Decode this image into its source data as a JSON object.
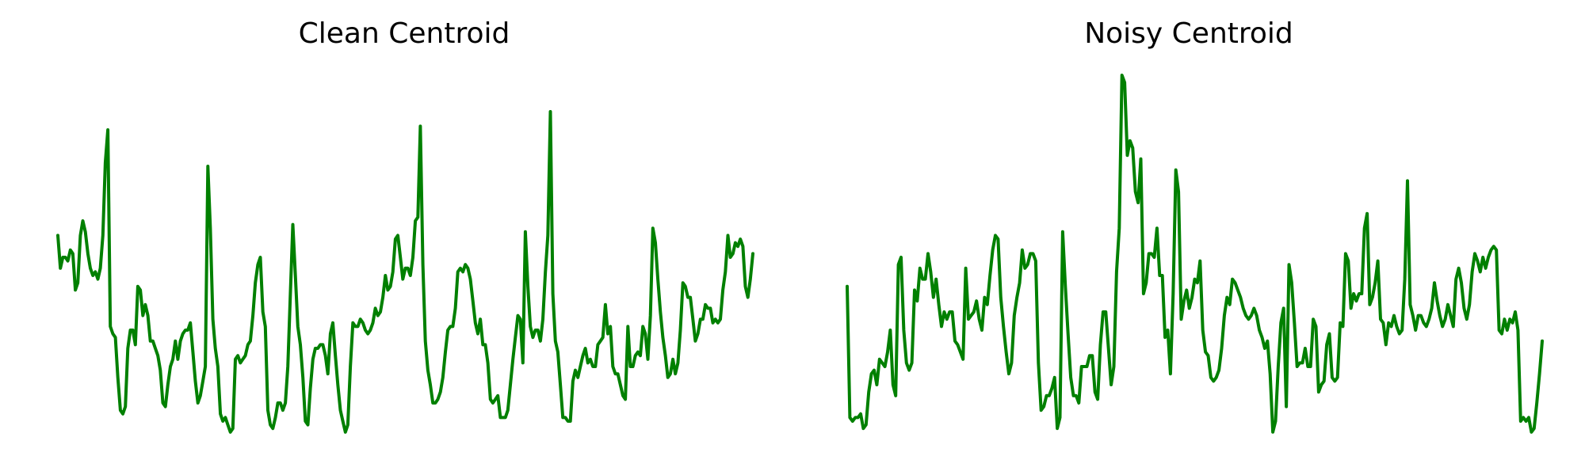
{
  "chart_data": [
    {
      "type": "line",
      "title": "Clean Centroid",
      "xlabel": "",
      "ylabel": "",
      "axes": "off",
      "grid": false,
      "color": "#008000",
      "series": [
        {
          "values": [
            0.56,
            0.47,
            0.5,
            0.5,
            0.49,
            0.52,
            0.51,
            0.41,
            0.43,
            0.56,
            0.6,
            0.57,
            0.51,
            0.47,
            0.45,
            0.46,
            0.44,
            0.47,
            0.56,
            0.76,
            0.85,
            0.31,
            0.29,
            0.28,
            0.17,
            0.08,
            0.07,
            0.09,
            0.25,
            0.3,
            0.3,
            0.26,
            0.42,
            0.41,
            0.34,
            0.37,
            0.34,
            0.27,
            0.27,
            0.25,
            0.23,
            0.19,
            0.1,
            0.09,
            0.15,
            0.2,
            0.22,
            0.27,
            0.22,
            0.27,
            0.29,
            0.3,
            0.3,
            0.32,
            0.24,
            0.16,
            0.1,
            0.12,
            0.16,
            0.2,
            0.75,
            0.58,
            0.33,
            0.25,
            0.2,
            0.07,
            0.05,
            0.06,
            0.04,
            0.02,
            0.03,
            0.22,
            0.23,
            0.21,
            0.22,
            0.23,
            0.26,
            0.27,
            0.34,
            0.43,
            0.48,
            0.5,
            0.35,
            0.31,
            0.08,
            0.04,
            0.03,
            0.06,
            0.1,
            0.1,
            0.08,
            0.1,
            0.2,
            0.4,
            0.59,
            0.45,
            0.31,
            0.26,
            0.17,
            0.05,
            0.04,
            0.14,
            0.22,
            0.25,
            0.25,
            0.26,
            0.26,
            0.23,
            0.18,
            0.29,
            0.32,
            0.23,
            0.15,
            0.08,
            0.05,
            0.02,
            0.04,
            0.2,
            0.32,
            0.31,
            0.31,
            0.33,
            0.32,
            0.3,
            0.29,
            0.3,
            0.32,
            0.36,
            0.34,
            0.35,
            0.39,
            0.45,
            0.41,
            0.42,
            0.46,
            0.55,
            0.56,
            0.5,
            0.44,
            0.47,
            0.47,
            0.45,
            0.5,
            0.6,
            0.61,
            0.86,
            0.48,
            0.27,
            0.19,
            0.15,
            0.1,
            0.1,
            0.11,
            0.13,
            0.17,
            0.24,
            0.3,
            0.31,
            0.31,
            0.36,
            0.46,
            0.47,
            0.46,
            0.48,
            0.47,
            0.44,
            0.38,
            0.32,
            0.29,
            0.33,
            0.26,
            0.26,
            0.21,
            0.11,
            0.1,
            0.11,
            0.12,
            0.06,
            0.06,
            0.06,
            0.08,
            0.15,
            0.22,
            0.28,
            0.34,
            0.33,
            0.21,
            0.57,
            0.42,
            0.31,
            0.28,
            0.3,
            0.3,
            0.27,
            0.33,
            0.46,
            0.56,
            0.9,
            0.4,
            0.27,
            0.24,
            0.15,
            0.06,
            0.06,
            0.05,
            0.05,
            0.16,
            0.19,
            0.17,
            0.2,
            0.23,
            0.25,
            0.21,
            0.22,
            0.2,
            0.2,
            0.26,
            0.27,
            0.28,
            0.37,
            0.29,
            0.31,
            0.2,
            0.18,
            0.18,
            0.15,
            0.12,
            0.11,
            0.31,
            0.2,
            0.2,
            0.23,
            0.24,
            0.23,
            0.31,
            0.29,
            0.22,
            0.34,
            0.58,
            0.54,
            0.44,
            0.35,
            0.28,
            0.23,
            0.17,
            0.18,
            0.22,
            0.18,
            0.21,
            0.3,
            0.43,
            0.42,
            0.39,
            0.39,
            0.33,
            0.27,
            0.29,
            0.33,
            0.33,
            0.37,
            0.36,
            0.36,
            0.32,
            0.33,
            0.32,
            0.33,
            0.41,
            0.46,
            0.56,
            0.5,
            0.51,
            0.54,
            0.53,
            0.55,
            0.53,
            0.42,
            0.39,
            0.44,
            0.51
          ]
        }
      ],
      "ylim": [
        0,
        1
      ]
    },
    {
      "type": "line",
      "title": "Noisy Centroid",
      "xlabel": "",
      "ylabel": "",
      "axes": "off",
      "grid": false,
      "color": "#008000",
      "series": [
        {
          "values": [
            0.42,
            0.06,
            0.05,
            0.06,
            0.06,
            0.07,
            0.03,
            0.04,
            0.13,
            0.18,
            0.19,
            0.15,
            0.22,
            0.21,
            0.2,
            0.24,
            0.3,
            0.15,
            0.12,
            0.48,
            0.5,
            0.3,
            0.21,
            0.19,
            0.21,
            0.41,
            0.38,
            0.47,
            0.44,
            0.44,
            0.51,
            0.46,
            0.39,
            0.44,
            0.37,
            0.31,
            0.35,
            0.33,
            0.35,
            0.35,
            0.27,
            0.26,
            0.24,
            0.22,
            0.47,
            0.33,
            0.34,
            0.35,
            0.38,
            0.33,
            0.3,
            0.39,
            0.37,
            0.45,
            0.52,
            0.56,
            0.55,
            0.39,
            0.31,
            0.24,
            0.18,
            0.21,
            0.34,
            0.39,
            0.43,
            0.52,
            0.47,
            0.48,
            0.51,
            0.51,
            0.49,
            0.21,
            0.08,
            0.09,
            0.12,
            0.12,
            0.14,
            0.17,
            0.03,
            0.06,
            0.57,
            0.42,
            0.29,
            0.17,
            0.12,
            0.12,
            0.1,
            0.2,
            0.2,
            0.2,
            0.23,
            0.23,
            0.13,
            0.11,
            0.26,
            0.35,
            0.35,
            0.25,
            0.15,
            0.2,
            0.46,
            0.58,
            1.0,
            0.98,
            0.78,
            0.82,
            0.8,
            0.68,
            0.65,
            0.77,
            0.4,
            0.43,
            0.51,
            0.51,
            0.5,
            0.58,
            0.45,
            0.45,
            0.28,
            0.3,
            0.18,
            0.4,
            0.74,
            0.68,
            0.33,
            0.38,
            0.41,
            0.36,
            0.39,
            0.44,
            0.43,
            0.49,
            0.3,
            0.24,
            0.23,
            0.17,
            0.16,
            0.17,
            0.19,
            0.25,
            0.34,
            0.39,
            0.37,
            0.44,
            0.43,
            0.41,
            0.39,
            0.36,
            0.34,
            0.33,
            0.34,
            0.36,
            0.34,
            0.3,
            0.28,
            0.25,
            0.27,
            0.18,
            0.02,
            0.05,
            0.2,
            0.32,
            0.36,
            0.09,
            0.48,
            0.43,
            0.32,
            0.2,
            0.21,
            0.21,
            0.25,
            0.2,
            0.2,
            0.33,
            0.31,
            0.13,
            0.15,
            0.16,
            0.26,
            0.29,
            0.17,
            0.16,
            0.17,
            0.32,
            0.31,
            0.51,
            0.49,
            0.36,
            0.4,
            0.38,
            0.4,
            0.4,
            0.58,
            0.62,
            0.37,
            0.39,
            0.43,
            0.49,
            0.33,
            0.32,
            0.26,
            0.32,
            0.31,
            0.34,
            0.31,
            0.29,
            0.3,
            0.44,
            0.71,
            0.37,
            0.34,
            0.3,
            0.34,
            0.34,
            0.32,
            0.31,
            0.33,
            0.36,
            0.43,
            0.38,
            0.34,
            0.31,
            0.33,
            0.37,
            0.34,
            0.31,
            0.44,
            0.47,
            0.43,
            0.36,
            0.33,
            0.37,
            0.46,
            0.51,
            0.49,
            0.46,
            0.5,
            0.47,
            0.5,
            0.52,
            0.53,
            0.52,
            0.3,
            0.29,
            0.33,
            0.3,
            0.33,
            0.32,
            0.35,
            0.3,
            0.05,
            0.06,
            0.05,
            0.06,
            0.02,
            0.03,
            0.1,
            0.18,
            0.27
          ]
        }
      ],
      "ylim": [
        0,
        1
      ]
    }
  ]
}
